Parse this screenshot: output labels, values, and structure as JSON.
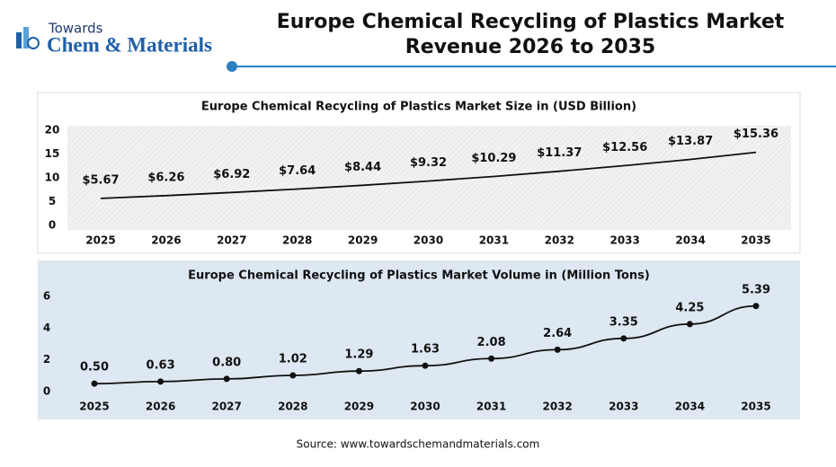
{
  "logo": {
    "small": "Towards",
    "large": "Chem & Materials"
  },
  "title": [
    "Europe Chemical Recycling of Plastics Market",
    "Revenue 2026 to 2035"
  ],
  "source": "Source: www.towardschemandmaterials.com",
  "chart_data": [
    {
      "type": "area",
      "title": "Europe Chemical Recycling of Plastics Market Size in (USD Billion)",
      "categories": [
        "2025",
        "2026",
        "2027",
        "2028",
        "2029",
        "2030",
        "2031",
        "2032",
        "2033",
        "2034",
        "2035"
      ],
      "values": [
        5.67,
        6.26,
        6.92,
        7.64,
        8.44,
        9.32,
        10.29,
        11.37,
        12.56,
        13.87,
        15.36
      ],
      "value_labels": [
        "$5.67",
        "$6.26",
        "$6.92",
        "$7.64",
        "$8.44",
        "$9.32",
        "$10.29",
        "$11.37",
        "$12.56",
        "$13.87",
        "$15.36"
      ],
      "color": "#111111",
      "ylim": [
        0,
        20
      ],
      "yticks": [
        0,
        5,
        10,
        15,
        20
      ]
    },
    {
      "type": "line",
      "title": "Europe Chemical Recycling of Plastics Market Volume in (Million Tons)",
      "categories": [
        "2025",
        "2026",
        "2027",
        "2028",
        "2029",
        "2030",
        "2031",
        "2032",
        "2033",
        "2034",
        "2035"
      ],
      "values": [
        0.5,
        0.63,
        0.8,
        1.02,
        1.29,
        1.63,
        2.08,
        2.64,
        3.35,
        4.25,
        5.39
      ],
      "value_labels": [
        "0.50",
        "0.63",
        "0.80",
        "1.02",
        "1.29",
        "1.63",
        "2.08",
        "2.64",
        "3.35",
        "4.25",
        "5.39"
      ],
      "color": "#111111",
      "ylim": [
        0,
        6
      ],
      "yticks": [
        0,
        2,
        4,
        6
      ]
    }
  ]
}
